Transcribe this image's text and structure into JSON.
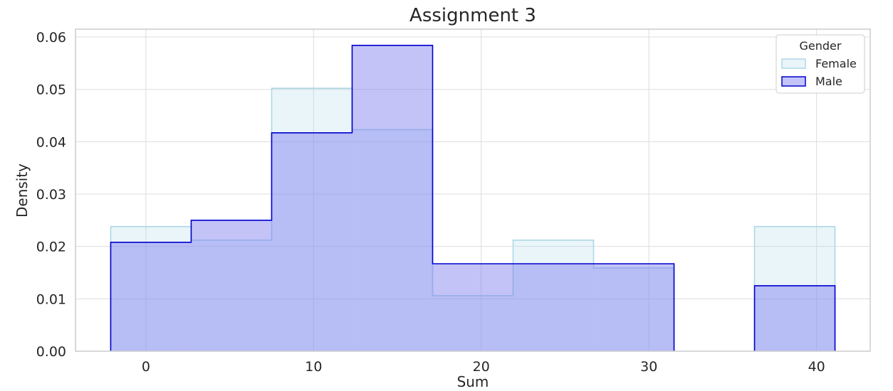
{
  "chart_data": {
    "type": "histogram",
    "title": "Assignment 3",
    "xlabel": "Sum",
    "ylabel": "Density",
    "xlim": [
      -4.2,
      43.2
    ],
    "ylim": [
      0,
      0.0615
    ],
    "xticks": [
      0,
      10,
      20,
      30,
      40
    ],
    "xtick_labels": [
      "0",
      "10",
      "20",
      "30",
      "40"
    ],
    "yticks": [
      0.0,
      0.01,
      0.02,
      0.03,
      0.04,
      0.05,
      0.06
    ],
    "ytick_labels": [
      "0.00",
      "0.01",
      "0.02",
      "0.03",
      "0.04",
      "0.05",
      "0.06"
    ],
    "grid": true,
    "bin_edges": [
      -2.1,
      2.7,
      7.5,
      12.3,
      17.1,
      21.9,
      26.7,
      31.5,
      36.3,
      41.1
    ],
    "legend": {
      "title": "Gender",
      "placement": "top-right"
    },
    "series": [
      {
        "name": "Female",
        "fill": "#add8e6",
        "stroke": "#add8e6",
        "fill_opacity": 0.25,
        "values": [
          0.0238,
          0.0212,
          0.0502,
          0.0423,
          0.0106,
          0.0212,
          0.0159,
          0.0,
          0.0238
        ]
      },
      {
        "name": "Male",
        "fill": "#7b7bf0",
        "stroke": "#0000cd",
        "fill_opacity": 0.45,
        "values": [
          0.0208,
          0.025,
          0.0417,
          0.0584,
          0.0167,
          0.0167,
          0.0167,
          0.0,
          0.0125
        ]
      }
    ]
  }
}
